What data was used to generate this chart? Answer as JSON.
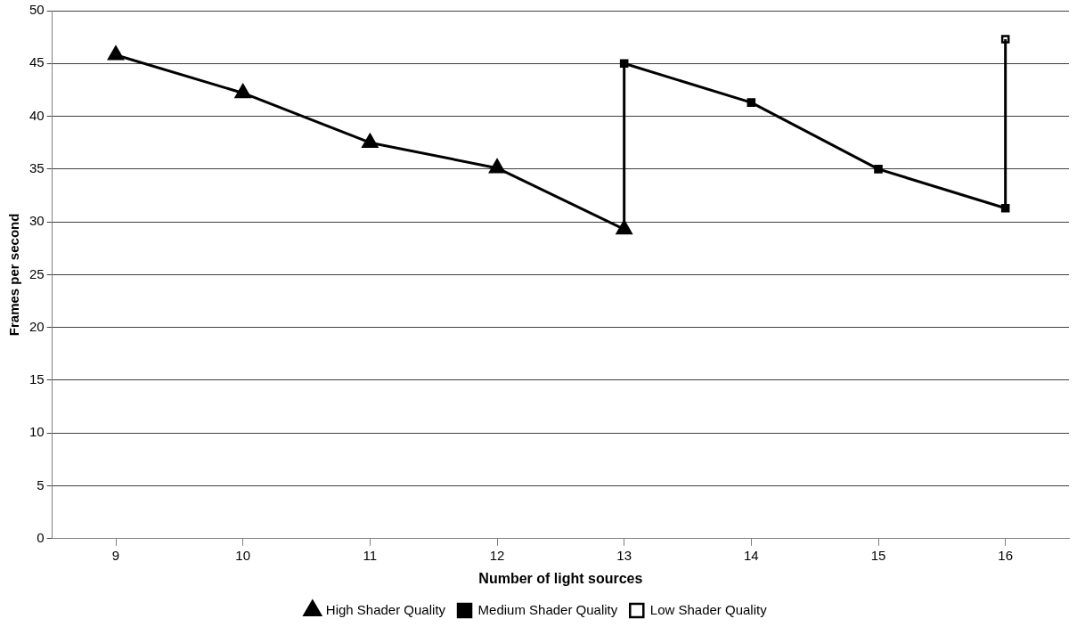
{
  "chart_data": {
    "type": "line",
    "xlabel": "Number of light sources",
    "ylabel": "Frames per second",
    "xlim": [
      8.5,
      16.5
    ],
    "xticks": [
      9,
      10,
      11,
      12,
      13,
      14,
      15,
      16
    ],
    "ylim": [
      0,
      50
    ],
    "yticks": [
      0,
      5,
      10,
      15,
      20,
      25,
      30,
      35,
      40,
      45,
      50
    ],
    "grid": "y",
    "legend": "bottom",
    "line_style": "solid",
    "series": [
      {
        "name": "High Shader Quality",
        "color": "#000000",
        "marker": "triangle",
        "x": [
          9,
          10,
          11,
          12,
          13
        ],
        "values": [
          45.8,
          42.2,
          37.5,
          35.1,
          29.3
        ]
      },
      {
        "color": "#000000",
        "x": [
          13,
          13
        ],
        "values": [
          29.3,
          45
        ]
      },
      {
        "name": "Medium Shader Quality",
        "color": "#000000",
        "marker": "square",
        "x": [
          13,
          14,
          15,
          16
        ],
        "values": [
          45,
          41.3,
          35,
          31.3
        ]
      },
      {
        "color": "#000000",
        "x": [
          16,
          16
        ],
        "values": [
          31.3,
          47.3
        ]
      },
      {
        "name": "Low Shader Quality",
        "color": "#000000",
        "marker": "square-open",
        "x": [
          16
        ],
        "values": [
          47.3
        ]
      }
    ]
  }
}
